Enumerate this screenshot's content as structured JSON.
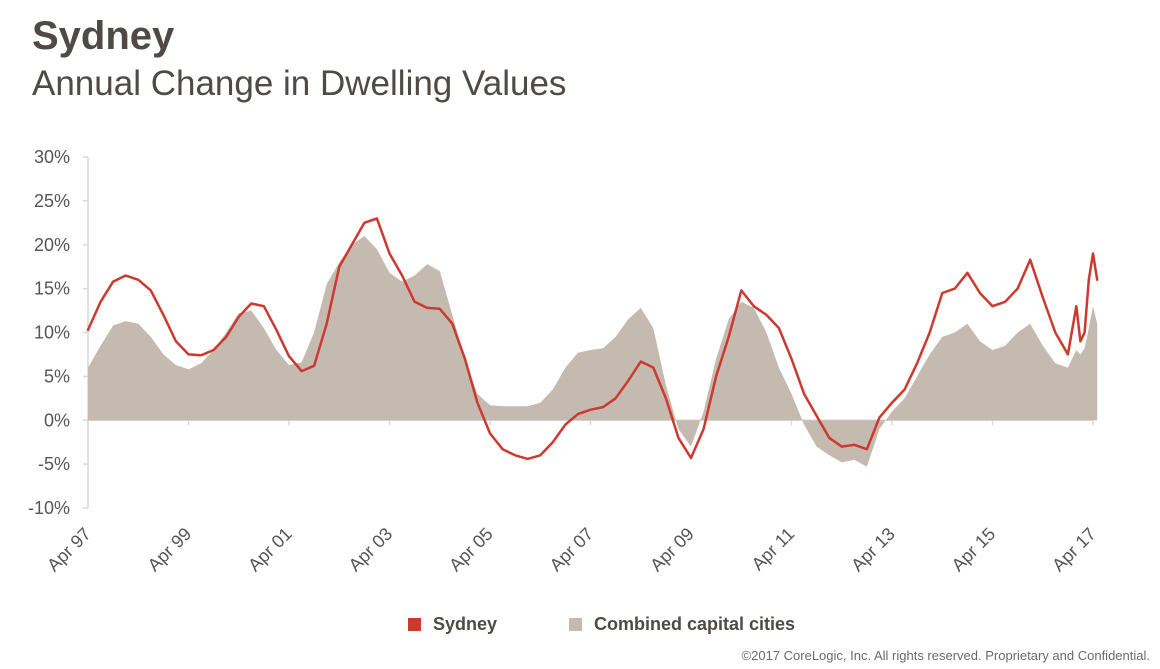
{
  "header": {
    "title": "Sydney",
    "subtitle": "Annual Change in Dwelling Values"
  },
  "footer": {
    "text": "©2017 CoreLogic, Inc. All rights reserved. Proprietary and Confidential."
  },
  "colors": {
    "sydney": "#cc3a2f",
    "combined": "#c4bab0",
    "axis": "#d9d9d9"
  },
  "chart_data": {
    "type": "line",
    "title": "Annual Change in Dwelling Values",
    "xlabel": "",
    "ylabel": "",
    "ylim": [
      -0.1,
      0.3
    ],
    "yticks": [
      -0.1,
      -0.05,
      0.0,
      0.05,
      0.1,
      0.15,
      0.2,
      0.25,
      0.3
    ],
    "ytick_labels": [
      "-10%",
      "-5%",
      "0%",
      "5%",
      "10%",
      "15%",
      "20%",
      "25%",
      "30%"
    ],
    "xlim": [
      "1997-04",
      "2017-04"
    ],
    "xtick_labels": [
      "Apr 97",
      "Apr 99",
      "Apr 01",
      "Apr 03",
      "Apr 05",
      "Apr 07",
      "Apr 09",
      "Apr 11",
      "Apr 13",
      "Apr 15",
      "Apr 17"
    ],
    "xticks": [
      "1997-04",
      "1999-04",
      "2001-04",
      "2003-04",
      "2005-04",
      "2007-04",
      "2009-04",
      "2011-04",
      "2013-04",
      "2015-04",
      "2017-04"
    ],
    "legend": "bottom",
    "grid": false,
    "series": [
      {
        "name": "Sydney",
        "type": "line",
        "points": [
          [
            "1997-04",
            0.103
          ],
          [
            "1997-07",
            0.135
          ],
          [
            "1997-10",
            0.158
          ],
          [
            "1998-01",
            0.165
          ],
          [
            "1998-04",
            0.16
          ],
          [
            "1998-07",
            0.148
          ],
          [
            "1998-10",
            0.12
          ],
          [
            "1999-01",
            0.09
          ],
          [
            "1999-04",
            0.075
          ],
          [
            "1999-07",
            0.074
          ],
          [
            "1999-10",
            0.08
          ],
          [
            "2000-01",
            0.095
          ],
          [
            "2000-04",
            0.118
          ],
          [
            "2000-07",
            0.133
          ],
          [
            "2000-10",
            0.13
          ],
          [
            "2001-01",
            0.103
          ],
          [
            "2001-04",
            0.073
          ],
          [
            "2001-07",
            0.056
          ],
          [
            "2001-10",
            0.062
          ],
          [
            "2002-01",
            0.11
          ],
          [
            "2002-04",
            0.175
          ],
          [
            "2002-07",
            0.2
          ],
          [
            "2002-10",
            0.225
          ],
          [
            "2003-01",
            0.23
          ],
          [
            "2003-04",
            0.19
          ],
          [
            "2003-07",
            0.165
          ],
          [
            "2003-10",
            0.135
          ],
          [
            "2004-01",
            0.128
          ],
          [
            "2004-04",
            0.127
          ],
          [
            "2004-07",
            0.11
          ],
          [
            "2004-10",
            0.07
          ],
          [
            "2005-01",
            0.02
          ],
          [
            "2005-04",
            -0.015
          ],
          [
            "2005-07",
            -0.033
          ],
          [
            "2005-10",
            -0.04
          ],
          [
            "2006-01",
            -0.044
          ],
          [
            "2006-04",
            -0.04
          ],
          [
            "2006-07",
            -0.025
          ],
          [
            "2006-10",
            -0.005
          ],
          [
            "2007-01",
            0.007
          ],
          [
            "2007-04",
            0.012
          ],
          [
            "2007-07",
            0.015
          ],
          [
            "2007-10",
            0.025
          ],
          [
            "2008-01",
            0.045
          ],
          [
            "2008-04",
            0.067
          ],
          [
            "2008-07",
            0.06
          ],
          [
            "2008-10",
            0.025
          ],
          [
            "2009-01",
            -0.02
          ],
          [
            "2009-04",
            -0.043
          ],
          [
            "2009-07",
            -0.01
          ],
          [
            "2009-10",
            0.05
          ],
          [
            "2010-01",
            0.095
          ],
          [
            "2010-04",
            0.148
          ],
          [
            "2010-07",
            0.13
          ],
          [
            "2010-10",
            0.12
          ],
          [
            "2011-01",
            0.105
          ],
          [
            "2011-04",
            0.07
          ],
          [
            "2011-07",
            0.03
          ],
          [
            "2011-10",
            0.005
          ],
          [
            "2012-01",
            -0.02
          ],
          [
            "2012-04",
            -0.03
          ],
          [
            "2012-07",
            -0.028
          ],
          [
            "2012-10",
            -0.033
          ],
          [
            "2013-01",
            0.003
          ],
          [
            "2013-04",
            0.02
          ],
          [
            "2013-07",
            0.035
          ],
          [
            "2013-10",
            0.065
          ],
          [
            "2014-01",
            0.1
          ],
          [
            "2014-04",
            0.145
          ],
          [
            "2014-07",
            0.15
          ],
          [
            "2014-10",
            0.168
          ],
          [
            "2015-01",
            0.145
          ],
          [
            "2015-04",
            0.13
          ],
          [
            "2015-07",
            0.135
          ],
          [
            "2015-10",
            0.15
          ],
          [
            "2016-01",
            0.183
          ],
          [
            "2016-04",
            0.14
          ],
          [
            "2016-07",
            0.1
          ],
          [
            "2016-10",
            0.075
          ],
          [
            "2016-12",
            0.13
          ],
          [
            "2017-01",
            0.09
          ],
          [
            "2017-02",
            0.1
          ],
          [
            "2017-03",
            0.16
          ],
          [
            "2017-04",
            0.19
          ],
          [
            "2017-05",
            0.16
          ]
        ]
      },
      {
        "name": "Combined capital cities",
        "type": "area",
        "points": [
          [
            "1997-04",
            0.06
          ],
          [
            "1997-07",
            0.085
          ],
          [
            "1997-10",
            0.108
          ],
          [
            "1998-01",
            0.113
          ],
          [
            "1998-04",
            0.11
          ],
          [
            "1998-07",
            0.095
          ],
          [
            "1998-10",
            0.075
          ],
          [
            "1999-01",
            0.063
          ],
          [
            "1999-04",
            0.058
          ],
          [
            "1999-07",
            0.065
          ],
          [
            "1999-10",
            0.08
          ],
          [
            "2000-01",
            0.1
          ],
          [
            "2000-04",
            0.122
          ],
          [
            "2000-07",
            0.125
          ],
          [
            "2000-10",
            0.105
          ],
          [
            "2001-01",
            0.08
          ],
          [
            "2001-04",
            0.063
          ],
          [
            "2001-07",
            0.066
          ],
          [
            "2001-10",
            0.1
          ],
          [
            "2002-01",
            0.155
          ],
          [
            "2002-04",
            0.18
          ],
          [
            "2002-07",
            0.2
          ],
          [
            "2002-10",
            0.21
          ],
          [
            "2003-01",
            0.195
          ],
          [
            "2003-04",
            0.168
          ],
          [
            "2003-07",
            0.158
          ],
          [
            "2003-10",
            0.165
          ],
          [
            "2004-01",
            0.178
          ],
          [
            "2004-04",
            0.17
          ],
          [
            "2004-07",
            0.12
          ],
          [
            "2004-10",
            0.07
          ],
          [
            "2005-01",
            0.03
          ],
          [
            "2005-04",
            0.017
          ],
          [
            "2005-07",
            0.016
          ],
          [
            "2005-10",
            0.016
          ],
          [
            "2006-01",
            0.016
          ],
          [
            "2006-04",
            0.02
          ],
          [
            "2006-07",
            0.035
          ],
          [
            "2006-10",
            0.06
          ],
          [
            "2007-01",
            0.077
          ],
          [
            "2007-04",
            0.08
          ],
          [
            "2007-07",
            0.082
          ],
          [
            "2007-10",
            0.095
          ],
          [
            "2008-01",
            0.115
          ],
          [
            "2008-04",
            0.128
          ],
          [
            "2008-07",
            0.105
          ],
          [
            "2008-10",
            0.04
          ],
          [
            "2009-01",
            -0.01
          ],
          [
            "2009-04",
            -0.03
          ],
          [
            "2009-07",
            0.01
          ],
          [
            "2009-10",
            0.07
          ],
          [
            "2010-01",
            0.115
          ],
          [
            "2010-04",
            0.135
          ],
          [
            "2010-07",
            0.128
          ],
          [
            "2010-10",
            0.1
          ],
          [
            "2011-01",
            0.06
          ],
          [
            "2011-04",
            0.03
          ],
          [
            "2011-07",
            -0.005
          ],
          [
            "2011-10",
            -0.03
          ],
          [
            "2012-01",
            -0.04
          ],
          [
            "2012-04",
            -0.048
          ],
          [
            "2012-07",
            -0.045
          ],
          [
            "2012-10",
            -0.053
          ],
          [
            "2013-01",
            -0.01
          ],
          [
            "2013-04",
            0.01
          ],
          [
            "2013-07",
            0.025
          ],
          [
            "2013-10",
            0.05
          ],
          [
            "2014-01",
            0.075
          ],
          [
            "2014-04",
            0.095
          ],
          [
            "2014-07",
            0.1
          ],
          [
            "2014-10",
            0.11
          ],
          [
            "2015-01",
            0.09
          ],
          [
            "2015-04",
            0.08
          ],
          [
            "2015-07",
            0.085
          ],
          [
            "2015-10",
            0.1
          ],
          [
            "2016-01",
            0.11
          ],
          [
            "2016-04",
            0.085
          ],
          [
            "2016-07",
            0.065
          ],
          [
            "2016-10",
            0.06
          ],
          [
            "2016-12",
            0.08
          ],
          [
            "2017-01",
            0.075
          ],
          [
            "2017-02",
            0.082
          ],
          [
            "2017-03",
            0.105
          ],
          [
            "2017-04",
            0.13
          ],
          [
            "2017-05",
            0.11
          ]
        ]
      }
    ]
  }
}
